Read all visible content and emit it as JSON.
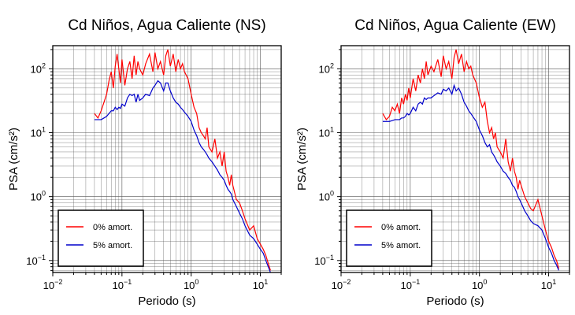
{
  "chart_data": [
    {
      "type": "line",
      "title": "Cd Niños, Agua Caliente (NS)",
      "xlabel": "Periodo (s)",
      "ylabel": "PSA (cm/s²)",
      "xscale": "log",
      "yscale": "log",
      "xlim": [
        0.01,
        20
      ],
      "ylim": [
        0.065,
        230
      ],
      "grid": true,
      "legend_position": "bottom-left",
      "x_ticks": [
        {
          "base": "10",
          "exp": "−2",
          "value": 0.01
        },
        {
          "base": "10",
          "exp": "−1",
          "value": 0.1
        },
        {
          "base": "10",
          "exp": "0",
          "value": 1
        },
        {
          "base": "10",
          "exp": "1",
          "value": 10
        }
      ],
      "y_ticks": [
        {
          "base": "10",
          "exp": "−1",
          "value": 0.1
        },
        {
          "base": "10",
          "exp": "0",
          "value": 1
        },
        {
          "base": "10",
          "exp": "1",
          "value": 10
        },
        {
          "base": "10",
          "exp": "2",
          "value": 100
        }
      ],
      "series": [
        {
          "name": "0% amort.",
          "color": "#ff0000",
          "x": [
            0.04,
            0.045,
            0.05,
            0.055,
            0.06,
            0.065,
            0.07,
            0.075,
            0.08,
            0.085,
            0.09,
            0.095,
            0.1,
            0.11,
            0.12,
            0.13,
            0.14,
            0.15,
            0.16,
            0.17,
            0.18,
            0.2,
            0.22,
            0.25,
            0.28,
            0.3,
            0.33,
            0.36,
            0.4,
            0.43,
            0.46,
            0.5,
            0.55,
            0.6,
            0.65,
            0.7,
            0.75,
            0.8,
            0.9,
            1.0,
            1.1,
            1.2,
            1.3,
            1.4,
            1.5,
            1.6,
            1.7,
            1.8,
            2.0,
            2.2,
            2.4,
            2.6,
            2.8,
            3.0,
            3.2,
            3.4,
            3.6,
            3.8,
            4.0,
            4.5,
            5.0,
            5.5,
            6.0,
            7.0,
            8.0,
            9.0,
            10.0,
            11.0,
            12.0,
            13.0,
            14.0
          ],
          "y": [
            20,
            17,
            22,
            30,
            40,
            65,
            90,
            50,
            110,
            170,
            100,
            60,
            140,
            55,
            100,
            130,
            70,
            160,
            80,
            130,
            100,
            80,
            120,
            170,
            90,
            180,
            100,
            130,
            80,
            160,
            200,
            110,
            170,
            90,
            140,
            100,
            120,
            90,
            70,
            40,
            25,
            20,
            12,
            10,
            9,
            8,
            12,
            6,
            5,
            8,
            4,
            5,
            3,
            5,
            2.5,
            2,
            1.5,
            2.2,
            1.5,
            0.9,
            0.8,
            0.6,
            0.45,
            0.3,
            0.35,
            0.22,
            0.18,
            0.15,
            0.12,
            0.09,
            0.07
          ]
        },
        {
          "name": "5% amort.",
          "color": "#0000cc",
          "x": [
            0.04,
            0.045,
            0.05,
            0.055,
            0.06,
            0.065,
            0.07,
            0.075,
            0.08,
            0.085,
            0.09,
            0.095,
            0.1,
            0.11,
            0.12,
            0.13,
            0.14,
            0.15,
            0.16,
            0.17,
            0.18,
            0.2,
            0.22,
            0.25,
            0.28,
            0.3,
            0.33,
            0.36,
            0.4,
            0.43,
            0.46,
            0.5,
            0.55,
            0.6,
            0.65,
            0.7,
            0.75,
            0.8,
            0.9,
            1.0,
            1.1,
            1.2,
            1.3,
            1.4,
            1.5,
            1.6,
            1.7,
            1.8,
            2.0,
            2.2,
            2.4,
            2.6,
            2.8,
            3.0,
            3.2,
            3.4,
            3.6,
            3.8,
            4.0,
            4.5,
            5.0,
            5.5,
            6.0,
            7.0,
            8.0,
            9.0,
            10.0,
            11.0,
            12.0,
            13.0,
            14.0
          ],
          "y": [
            16,
            16,
            16,
            17,
            18,
            20,
            22,
            22,
            25,
            23,
            25,
            24,
            28,
            26,
            35,
            40,
            38,
            40,
            30,
            40,
            32,
            35,
            40,
            38,
            50,
            55,
            65,
            60,
            45,
            60,
            60,
            45,
            35,
            30,
            28,
            25,
            23,
            21,
            18,
            15,
            11,
            9,
            7,
            6,
            5.5,
            5,
            4.5,
            4,
            3.5,
            3,
            2.6,
            2.2,
            2,
            1.8,
            1.5,
            1.3,
            1.2,
            1.1,
            0.9,
            0.7,
            0.55,
            0.45,
            0.35,
            0.25,
            0.22,
            0.18,
            0.15,
            0.13,
            0.1,
            0.08,
            0.065
          ]
        }
      ]
    },
    {
      "type": "line",
      "title": "Cd Niños, Agua Caliente (EW)",
      "xlabel": "Periodo (s)",
      "ylabel": "PSA (cm/s²)",
      "xscale": "log",
      "yscale": "log",
      "xlim": [
        0.01,
        20
      ],
      "ylim": [
        0.065,
        230
      ],
      "grid": true,
      "legend_position": "bottom-left",
      "x_ticks": [
        {
          "base": "10",
          "exp": "−2",
          "value": 0.01
        },
        {
          "base": "10",
          "exp": "−1",
          "value": 0.1
        },
        {
          "base": "10",
          "exp": "0",
          "value": 1
        },
        {
          "base": "10",
          "exp": "1",
          "value": 10
        }
      ],
      "y_ticks": [
        {
          "base": "10",
          "exp": "−1",
          "value": 0.1
        },
        {
          "base": "10",
          "exp": "0",
          "value": 1
        },
        {
          "base": "10",
          "exp": "1",
          "value": 10
        },
        {
          "base": "10",
          "exp": "2",
          "value": 100
        }
      ],
      "series": [
        {
          "name": "0% amort.",
          "color": "#ff0000",
          "x": [
            0.04,
            0.045,
            0.05,
            0.055,
            0.06,
            0.065,
            0.07,
            0.075,
            0.08,
            0.085,
            0.09,
            0.095,
            0.1,
            0.11,
            0.12,
            0.13,
            0.14,
            0.15,
            0.16,
            0.17,
            0.18,
            0.2,
            0.22,
            0.25,
            0.28,
            0.3,
            0.33,
            0.36,
            0.4,
            0.43,
            0.46,
            0.5,
            0.55,
            0.6,
            0.65,
            0.7,
            0.75,
            0.8,
            0.9,
            1.0,
            1.1,
            1.2,
            1.3,
            1.4,
            1.5,
            1.6,
            1.7,
            1.8,
            2.0,
            2.2,
            2.4,
            2.6,
            2.8,
            3.0,
            3.2,
            3.4,
            3.6,
            3.8,
            4.0,
            4.5,
            5.0,
            5.5,
            6.0,
            7.0,
            8.0,
            9.0,
            10.0,
            11.0,
            12.0,
            13.0,
            14.0
          ],
          "y": [
            20,
            16,
            18,
            25,
            22,
            28,
            20,
            35,
            28,
            40,
            32,
            50,
            35,
            70,
            45,
            80,
            60,
            100,
            70,
            130,
            80,
            110,
            90,
            140,
            75,
            160,
            100,
            130,
            70,
            150,
            200,
            120,
            170,
            90,
            130,
            100,
            110,
            80,
            60,
            35,
            25,
            30,
            15,
            10,
            12,
            8,
            10,
            6,
            5,
            4,
            8,
            3.5,
            2.5,
            4,
            2.5,
            2,
            1.3,
            1.8,
            1.5,
            1.0,
            0.8,
            0.65,
            0.6,
            0.9,
            0.5,
            0.3,
            0.2,
            0.16,
            0.12,
            0.1,
            0.075
          ]
        },
        {
          "name": "5% amort.",
          "color": "#0000cc",
          "x": [
            0.04,
            0.045,
            0.05,
            0.055,
            0.06,
            0.065,
            0.07,
            0.075,
            0.08,
            0.085,
            0.09,
            0.095,
            0.1,
            0.11,
            0.12,
            0.13,
            0.14,
            0.15,
            0.16,
            0.17,
            0.18,
            0.2,
            0.22,
            0.25,
            0.28,
            0.3,
            0.33,
            0.36,
            0.4,
            0.43,
            0.46,
            0.5,
            0.55,
            0.6,
            0.65,
            0.7,
            0.75,
            0.8,
            0.9,
            1.0,
            1.1,
            1.2,
            1.3,
            1.4,
            1.5,
            1.6,
            1.7,
            1.8,
            2.0,
            2.2,
            2.4,
            2.6,
            2.8,
            3.0,
            3.2,
            3.4,
            3.6,
            3.8,
            4.0,
            4.5,
            5.0,
            5.5,
            6.0,
            7.0,
            8.0,
            9.0,
            10.0,
            11.0,
            12.0,
            13.0,
            14.0
          ],
          "y": [
            15,
            15,
            15,
            15.5,
            16,
            16,
            16,
            17,
            17,
            18,
            20,
            19,
            20,
            25,
            22,
            28,
            30,
            28,
            35,
            33,
            35,
            35,
            38,
            42,
            40,
            48,
            45,
            50,
            40,
            55,
            45,
            50,
            40,
            30,
            26,
            22,
            20,
            18,
            15,
            11,
            9,
            7,
            6,
            6.5,
            5,
            4.5,
            4,
            3.5,
            3,
            2.5,
            2.3,
            2.0,
            1.8,
            1.5,
            1.4,
            1.2,
            1.0,
            0.9,
            0.8,
            0.6,
            0.5,
            0.42,
            0.38,
            0.35,
            0.3,
            0.22,
            0.16,
            0.13,
            0.1,
            0.085,
            0.07
          ]
        }
      ]
    }
  ]
}
